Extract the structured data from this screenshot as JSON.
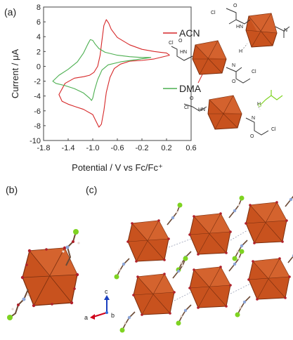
{
  "panels": {
    "a": "(a)",
    "b": "(b)",
    "c": "(c)"
  },
  "chart_data": {
    "type": "line",
    "xlabel": "Potential / V vs Fc/Fc⁺",
    "ylabel": "Current / μA",
    "xlim": [
      -1.8,
      0.6
    ],
    "ylim": [
      -10,
      8
    ],
    "xticks": [
      "-1.8",
      "-1.4",
      "-1.0",
      "-0.6",
      "-0.2",
      "0.2",
      "0.6"
    ],
    "xtick_values": [
      -1.8,
      -1.4,
      -1.0,
      -0.6,
      -0.2,
      0.2,
      0.6
    ],
    "yticks": [
      "-10",
      "-8",
      "-6",
      "-4",
      "-2",
      "0",
      "2",
      "4",
      "6",
      "8"
    ],
    "ytick_values": [
      -10,
      -8,
      -6,
      -4,
      -2,
      0,
      2,
      4,
      6,
      8
    ],
    "series": [
      {
        "name": "ACN",
        "color": "#d62728",
        "x": [
          0.25,
          0.0,
          -0.2,
          -0.4,
          -0.55,
          -0.65,
          -0.72,
          -0.78,
          -0.82,
          -0.86,
          -0.9,
          -1.0,
          -1.15,
          -1.3,
          -1.4,
          -1.5,
          -1.55,
          -1.45,
          -1.3,
          -1.15,
          -1.05,
          -0.98,
          -0.92,
          -0.88,
          -0.85,
          -0.82,
          -0.78,
          -0.74,
          -0.7,
          -0.6,
          -0.4,
          -0.2,
          0.0,
          0.1,
          0.2,
          0.25
        ],
        "y": [
          1.5,
          1.0,
          0.8,
          0.7,
          0.3,
          -0.3,
          -1.5,
          -3.5,
          -6.0,
          -7.8,
          -8.2,
          -6.5,
          -5.8,
          -5.4,
          -5.1,
          -4.7,
          -3.8,
          -2.3,
          -1.6,
          -1.4,
          -1.2,
          -0.8,
          0.0,
          1.5,
          3.5,
          5.5,
          6.3,
          5.8,
          5.0,
          3.9,
          2.9,
          2.3,
          2.0,
          1.9,
          1.8,
          1.5
        ]
      },
      {
        "name": "DMA",
        "color": "#4caf50",
        "x": [
          -0.05,
          -0.3,
          -0.55,
          -0.75,
          -0.85,
          -0.92,
          -0.97,
          -1.0,
          -1.02,
          -1.05,
          -1.15,
          -1.3,
          -1.45,
          -1.6,
          -1.65,
          -1.55,
          -1.4,
          -1.25,
          -1.15,
          -1.08,
          -1.04,
          -1.0,
          -0.96,
          -0.9,
          -0.8,
          -0.6,
          -0.4,
          -0.2,
          -0.05
        ],
        "y": [
          1.2,
          0.9,
          0.6,
          0.2,
          -0.5,
          -1.8,
          -3.2,
          -4.3,
          -4.6,
          -4.3,
          -3.6,
          -3.0,
          -2.6,
          -2.3,
          -2.0,
          -1.2,
          -0.4,
          0.6,
          1.8,
          3.0,
          3.6,
          3.5,
          3.0,
          2.4,
          1.9,
          1.5,
          1.3,
          1.2,
          1.2
        ]
      }
    ]
  },
  "legend": {
    "acn": "ACN",
    "dma": "DMA"
  },
  "molecule": {
    "cl": "Cl",
    "o": "O",
    "hn": "HN",
    "n": "N",
    "h": "H"
  },
  "axes_labels": {
    "a": "a",
    "b": "b",
    "c": "c"
  },
  "colors": {
    "cluster_fill": "#c8521e",
    "cluster_edge": "#7a2e0e",
    "chlorine": "#7ed321",
    "carbon": "#6b4a36",
    "nitrogen": "#8da6d8",
    "hydrogen": "#e8d9d2",
    "oxygen": "#b0202a",
    "axis_a": "#d0021b",
    "axis_b": "#2f6fe0",
    "axis_c": "#1a3fbf"
  }
}
